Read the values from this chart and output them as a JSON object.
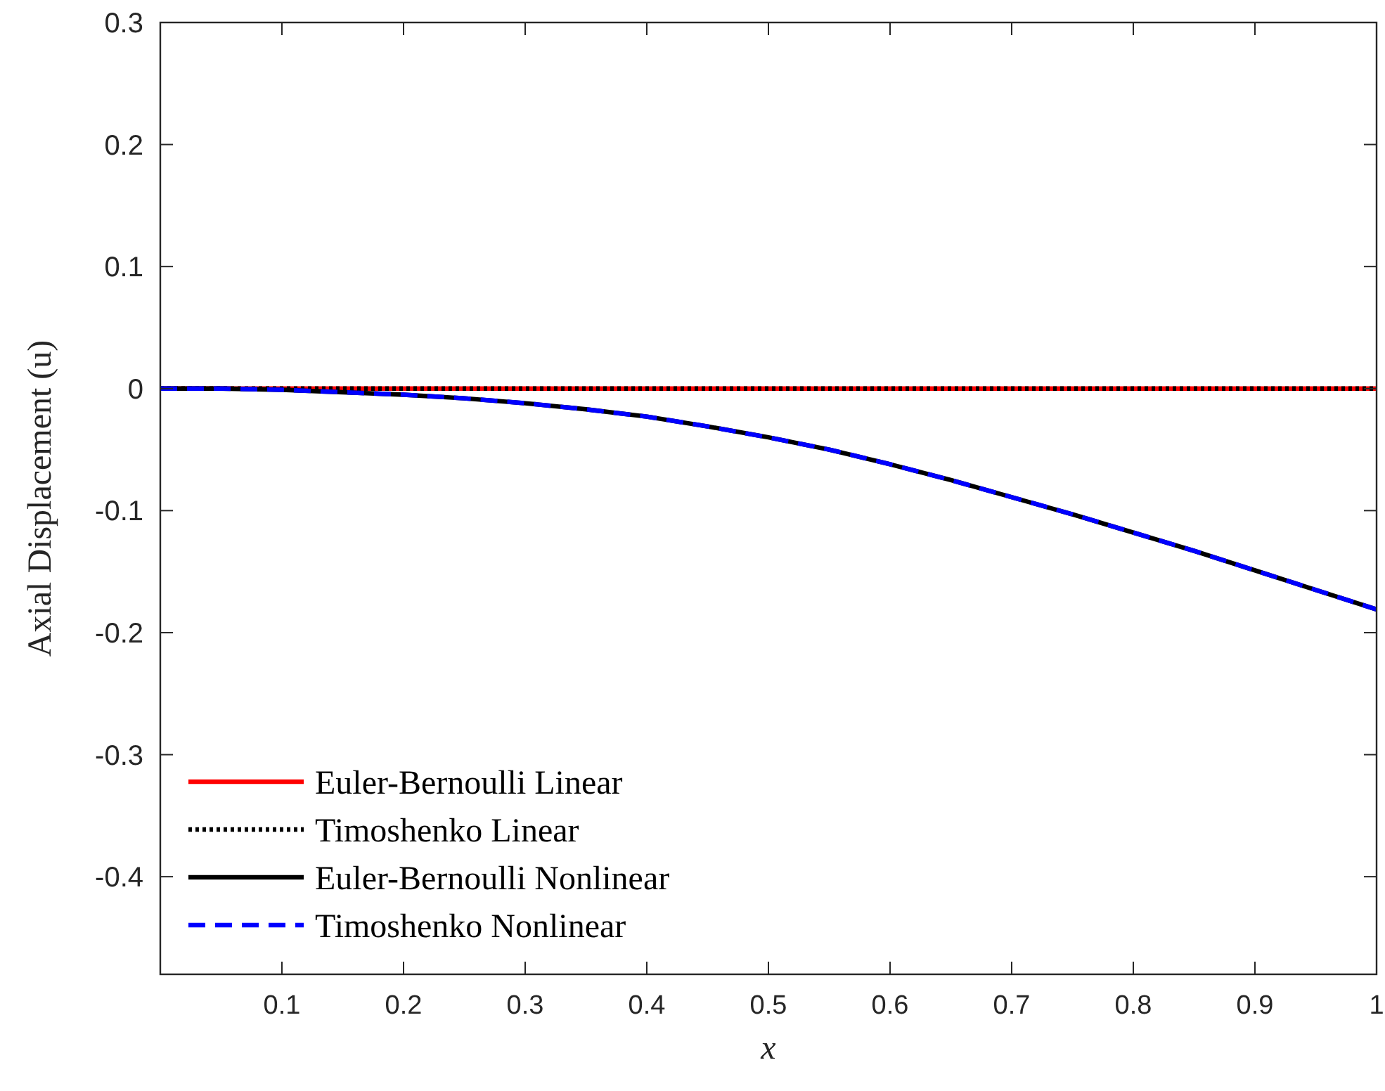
{
  "chart_data": {
    "type": "line",
    "xlabel": "x",
    "ylabel": "Axial Displacement (u)",
    "x": [
      0,
      0.05,
      0.1,
      0.15,
      0.2,
      0.25,
      0.3,
      0.35,
      0.4,
      0.45,
      0.5,
      0.55,
      0.6,
      0.65,
      0.7,
      0.75,
      0.8,
      0.85,
      0.9,
      0.95,
      1
    ],
    "series": [
      {
        "name": "Euler-Bernoulli Linear",
        "color": "#ff0000",
        "line_style": "solid",
        "values": [
          0,
          0,
          0,
          0,
          0,
          0,
          0,
          0,
          0,
          0,
          0,
          0,
          0,
          0,
          0,
          0,
          0,
          0,
          0,
          0,
          0
        ]
      },
      {
        "name": "Timoshenko Linear",
        "color": "#000000",
        "line_style": "dotted",
        "values": [
          0,
          0,
          0,
          0,
          0,
          0,
          0,
          0,
          0,
          0,
          0,
          0,
          0,
          0,
          0,
          0,
          0,
          0,
          0,
          0,
          0
        ]
      },
      {
        "name": "Euler-Bernoulli Nonlinear",
        "color": "#000000",
        "line_style": "solid",
        "values": [
          0,
          0,
          -0.001,
          -0.003,
          -0.005,
          -0.008,
          -0.012,
          -0.017,
          -0.023,
          -0.031,
          -0.04,
          -0.05,
          -0.062,
          -0.075,
          -0.089,
          -0.103,
          -0.118,
          -0.133,
          -0.149,
          -0.165,
          -0.181
        ]
      },
      {
        "name": "Timoshenko Nonlinear",
        "color": "#0000ff",
        "line_style": "dashed",
        "values": [
          0,
          0,
          -0.001,
          -0.003,
          -0.005,
          -0.008,
          -0.012,
          -0.017,
          -0.023,
          -0.031,
          -0.04,
          -0.05,
          -0.062,
          -0.075,
          -0.089,
          -0.103,
          -0.118,
          -0.133,
          -0.149,
          -0.165,
          -0.181
        ]
      }
    ],
    "xlim": [
      0,
      1
    ],
    "xticks": [
      0.1,
      0.2,
      0.3,
      0.4,
      0.5,
      0.6,
      0.7,
      0.8,
      0.9,
      1
    ],
    "ylim": [
      -0.48,
      0.3
    ],
    "yticks": [
      -0.4,
      -0.3,
      -0.2,
      -0.1,
      0,
      0.1,
      0.2,
      0.3
    ],
    "grid": false,
    "legend": "bottom left",
    "marker": "none"
  }
}
